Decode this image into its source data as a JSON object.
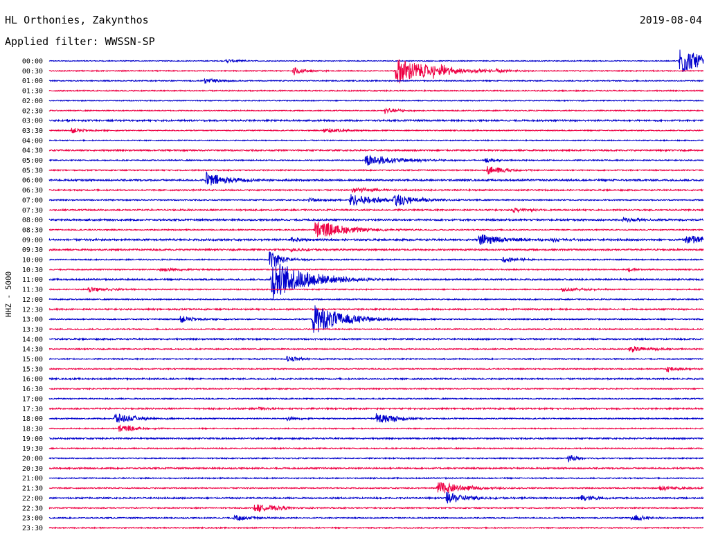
{
  "header": {
    "station": "HL Orthonies, Zakynthos",
    "filter": "Applied filter: WWSSN-SP",
    "date": "2019-08-04"
  },
  "colors": {
    "trace_a": "#0000cc",
    "trace_b": "#ee0044"
  },
  "chart_data": {
    "type": "line",
    "title": "HL Orthonies, Zakynthos",
    "subtitle": "Applied filter: WWSSN-SP",
    "ylabel": "HHZ - 5000",
    "xlabel": "",
    "grid": false,
    "legend": "none",
    "rows": [
      "00:00",
      "00:30",
      "01:00",
      "01:30",
      "02:00",
      "02:30",
      "03:00",
      "03:30",
      "04:00",
      "04:30",
      "05:00",
      "05:30",
      "06:00",
      "06:30",
      "07:00",
      "07:30",
      "08:00",
      "08:30",
      "09:00",
      "09:30",
      "10:00",
      "10:30",
      "11:00",
      "11:30",
      "12:00",
      "12:30",
      "13:00",
      "13:30",
      "14:00",
      "14:30",
      "15:00",
      "15:30",
      "16:00",
      "16:30",
      "17:00",
      "17:30",
      "18:00",
      "18:30",
      "19:00",
      "19:30",
      "20:00",
      "20:30",
      "21:00",
      "21:30",
      "22:00",
      "22:30",
      "23:00",
      "23:30"
    ],
    "row_minutes": 30,
    "noise": [
      0.8,
      0.9,
      0.9,
      1.0,
      0.8,
      0.9,
      1.4,
      0.9,
      0.9,
      1.3,
      1.0,
      1.0,
      1.5,
      1.2,
      1.0,
      1.3,
      1.5,
      1.0,
      1.6,
      1.4,
      1.0,
      1.0,
      1.3,
      1.0,
      1.0,
      1.3,
      1.0,
      1.0,
      1.3,
      1.0,
      1.0,
      1.0,
      1.3,
      1.0,
      1.0,
      1.3,
      1.0,
      1.0,
      1.3,
      1.0,
      1.0,
      1.3,
      1.0,
      1.0,
      1.3,
      1.0,
      1.0,
      1.0
    ],
    "events": [
      {
        "row": 0,
        "t": 28.9,
        "a": 22,
        "d": 1.0
      },
      {
        "row": 0,
        "t": 8.1,
        "a": 3,
        "d": 0.6
      },
      {
        "row": 1,
        "t": 15.9,
        "a": 20,
        "d": 1.6
      },
      {
        "row": 1,
        "t": 17.6,
        "a": 9,
        "d": 0.8
      },
      {
        "row": 1,
        "t": 11.2,
        "a": 6,
        "d": 0.6
      },
      {
        "row": 1,
        "t": 20.5,
        "a": 3,
        "d": 0.4
      },
      {
        "row": 2,
        "t": 7.1,
        "a": 4,
        "d": 0.8
      },
      {
        "row": 5,
        "t": 15.4,
        "a": 5,
        "d": 0.6
      },
      {
        "row": 6,
        "t": 0.8,
        "a": 2,
        "d": 0.4
      },
      {
        "row": 7,
        "t": 1.0,
        "a": 4,
        "d": 0.8
      },
      {
        "row": 7,
        "t": 12.6,
        "a": 4,
        "d": 1.0
      },
      {
        "row": 10,
        "t": 14.5,
        "a": 9,
        "d": 1.4
      },
      {
        "row": 10,
        "t": 20.0,
        "a": 3,
        "d": 0.6
      },
      {
        "row": 11,
        "t": 20.1,
        "a": 7,
        "d": 0.8
      },
      {
        "row": 12,
        "t": 7.2,
        "a": 11,
        "d": 1.0
      },
      {
        "row": 13,
        "t": 13.9,
        "a": 5,
        "d": 0.8
      },
      {
        "row": 14,
        "t": 13.8,
        "a": 9,
        "d": 1.4
      },
      {
        "row": 14,
        "t": 15.8,
        "a": 9,
        "d": 1.0
      },
      {
        "row": 14,
        "t": 11.9,
        "a": 3,
        "d": 1.0
      },
      {
        "row": 15,
        "t": 21.3,
        "a": 4,
        "d": 0.6
      },
      {
        "row": 16,
        "t": 26.3,
        "a": 4,
        "d": 0.6
      },
      {
        "row": 17,
        "t": 12.2,
        "a": 14,
        "d": 1.4
      },
      {
        "row": 18,
        "t": 19.7,
        "a": 8,
        "d": 1.2
      },
      {
        "row": 18,
        "t": 29.2,
        "a": 8,
        "d": 1.4
      },
      {
        "row": 18,
        "t": 11.1,
        "a": 4,
        "d": 0.5
      },
      {
        "row": 18,
        "t": 23.1,
        "a": 3,
        "d": 0.5
      },
      {
        "row": 19,
        "t": 11.1,
        "a": 3,
        "d": 0.8
      },
      {
        "row": 20,
        "t": 10.1,
        "a": 14,
        "d": 0.6
      },
      {
        "row": 20,
        "t": 20.8,
        "a": 4,
        "d": 0.8
      },
      {
        "row": 21,
        "t": 5.1,
        "a": 4,
        "d": 0.8
      },
      {
        "row": 21,
        "t": 26.5,
        "a": 3,
        "d": 0.6
      },
      {
        "row": 22,
        "t": 10.2,
        "a": 30,
        "d": 1.6
      },
      {
        "row": 23,
        "t": 1.8,
        "a": 4,
        "d": 1.0
      },
      {
        "row": 23,
        "t": 23.5,
        "a": 3,
        "d": 1.0
      },
      {
        "row": 26,
        "t": 12.1,
        "a": 22,
        "d": 1.4
      },
      {
        "row": 26,
        "t": 6.0,
        "a": 5,
        "d": 0.8
      },
      {
        "row": 29,
        "t": 26.6,
        "a": 5,
        "d": 1.0
      },
      {
        "row": 30,
        "t": 10.9,
        "a": 5,
        "d": 0.6
      },
      {
        "row": 31,
        "t": 28.3,
        "a": 5,
        "d": 0.6
      },
      {
        "row": 35,
        "t": 9.6,
        "a": 2,
        "d": 0.5
      },
      {
        "row": 36,
        "t": 3.0,
        "a": 8,
        "d": 1.0
      },
      {
        "row": 36,
        "t": 15.0,
        "a": 9,
        "d": 1.0
      },
      {
        "row": 36,
        "t": 10.9,
        "a": 4,
        "d": 0.5
      },
      {
        "row": 37,
        "t": 3.2,
        "a": 6,
        "d": 0.8
      },
      {
        "row": 40,
        "t": 23.8,
        "a": 5,
        "d": 0.5
      },
      {
        "row": 43,
        "t": 17.8,
        "a": 10,
        "d": 1.2
      },
      {
        "row": 43,
        "t": 28.0,
        "a": 4,
        "d": 1.0
      },
      {
        "row": 44,
        "t": 18.2,
        "a": 9,
        "d": 1.0
      },
      {
        "row": 44,
        "t": 24.4,
        "a": 6,
        "d": 0.6
      },
      {
        "row": 45,
        "t": 9.4,
        "a": 6,
        "d": 1.2
      },
      {
        "row": 46,
        "t": 8.5,
        "a": 5,
        "d": 0.8
      },
      {
        "row": 46,
        "t": 26.7,
        "a": 6,
        "d": 0.6
      }
    ]
  }
}
